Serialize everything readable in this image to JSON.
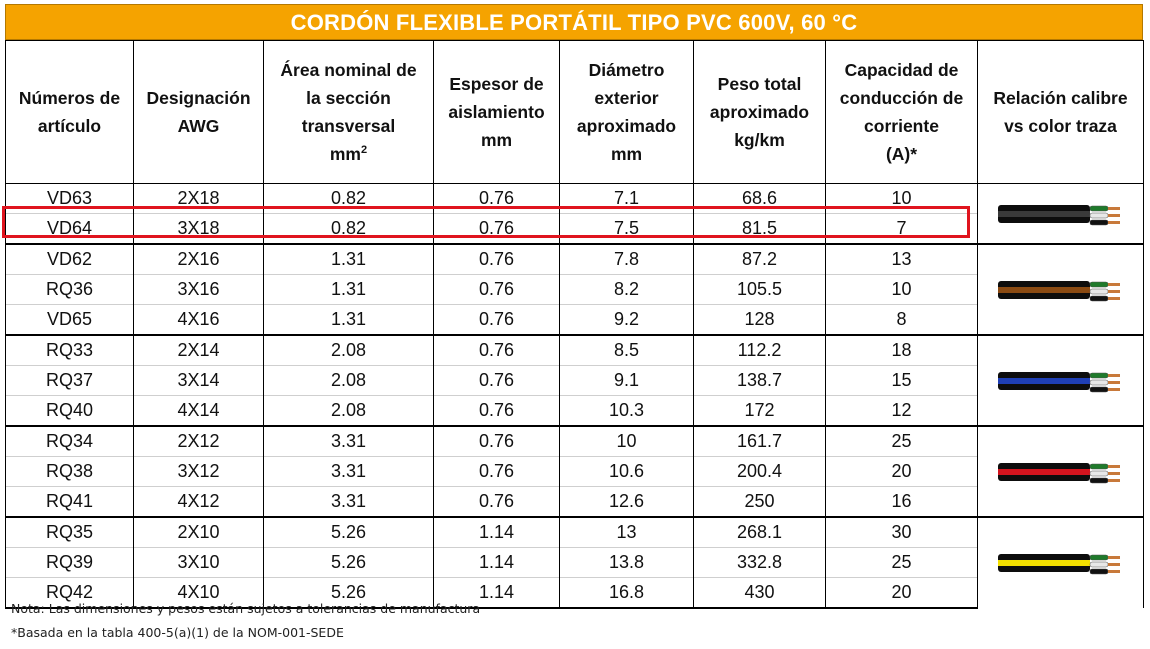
{
  "title": "CORDÓN FLEXIBLE PORTÁTIL TIPO PVC 600V, 60 °C",
  "headers": {
    "articulo": [
      "Números de",
      "artículo"
    ],
    "awg": [
      "Designación",
      "AWG"
    ],
    "area": [
      "Área nominal de",
      "la sección",
      "transversal",
      "mm",
      "2"
    ],
    "espesor": [
      "Espesor de",
      "aislamiento",
      "mm"
    ],
    "diametro": [
      "Diámetro",
      "exterior",
      "aproximado",
      "mm"
    ],
    "peso": [
      "Peso total",
      "aproximado",
      "kg/km"
    ],
    "capacidad": [
      "Capacidad de",
      "conducción de",
      "corriente",
      "(A)*"
    ],
    "relacion": [
      "Relación calibre",
      "vs color traza"
    ]
  },
  "rows": [
    [
      "VD63",
      "2X18",
      "0.82",
      "0.76",
      "7.1",
      "68.6",
      "10"
    ],
    [
      "VD64",
      "3X18",
      "0.82",
      "0.76",
      "7.5",
      "81.5",
      "7"
    ],
    [
      "VD62",
      "2X16",
      "1.31",
      "0.76",
      "7.8",
      "87.2",
      "13"
    ],
    [
      "RQ36",
      "3X16",
      "1.31",
      "0.76",
      "8.2",
      "105.5",
      "10"
    ],
    [
      "VD65",
      "4X16",
      "1.31",
      "0.76",
      "9.2",
      "128",
      "8"
    ],
    [
      "RQ33",
      "2X14",
      "2.08",
      "0.76",
      "8.5",
      "112.2",
      "18"
    ],
    [
      "RQ37",
      "3X14",
      "2.08",
      "0.76",
      "9.1",
      "138.7",
      "15"
    ],
    [
      "RQ40",
      "4X14",
      "2.08",
      "0.76",
      "10.3",
      "172",
      "12"
    ],
    [
      "RQ34",
      "2X12",
      "3.31",
      "0.76",
      "10",
      "161.7",
      "25"
    ],
    [
      "RQ38",
      "3X12",
      "3.31",
      "0.76",
      "10.6",
      "200.4",
      "20"
    ],
    [
      "RQ41",
      "4X12",
      "3.31",
      "0.76",
      "12.6",
      "250",
      "16"
    ],
    [
      "RQ35",
      "2X10",
      "5.26",
      "1.14",
      "13",
      "268.1",
      "30"
    ],
    [
      "RQ39",
      "3X10",
      "5.26",
      "1.14",
      "13.8",
      "332.8",
      "25"
    ],
    [
      "RQ42",
      "4X10",
      "5.26",
      "1.14",
      "16.8",
      "430",
      "20"
    ]
  ],
  "groups": [
    {
      "rows": 2,
      "stripe_color": "#3a3a3a",
      "icon": "gray-cable-icon"
    },
    {
      "rows": 3,
      "stripe_color": "#8a4a12",
      "icon": "brown-cable-icon"
    },
    {
      "rows": 3,
      "stripe_color": "#1f3fb5",
      "icon": "blue-cable-icon"
    },
    {
      "rows": 3,
      "stripe_color": "#d3141e",
      "icon": "red-cable-icon"
    },
    {
      "rows": 3,
      "stripe_color": "#f3e000",
      "icon": "yellow-cable-icon"
    }
  ],
  "highlighted_row": 1,
  "colors": {
    "title_bg": "#f5a300",
    "highlight": "#e0141e"
  },
  "notes": {
    "note1": "Nota: Las dimensiones y pesos están sujetos a tolerancias de manufactura",
    "note2": "*Basada en la tabla 400-5(a)(1) de la NOM-001-SEDE"
  }
}
